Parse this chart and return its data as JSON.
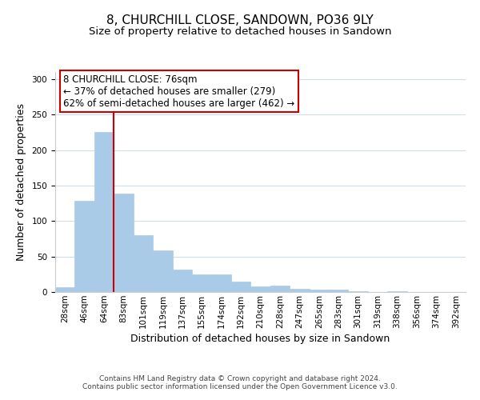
{
  "title": "8, CHURCHILL CLOSE, SANDOWN, PO36 9LY",
  "subtitle": "Size of property relative to detached houses in Sandown",
  "xlabel": "Distribution of detached houses by size in Sandown",
  "ylabel": "Number of detached properties",
  "bar_labels": [
    "28sqm",
    "46sqm",
    "64sqm",
    "83sqm",
    "101sqm",
    "119sqm",
    "137sqm",
    "155sqm",
    "174sqm",
    "192sqm",
    "210sqm",
    "228sqm",
    "247sqm",
    "265sqm",
    "283sqm",
    "301sqm",
    "319sqm",
    "338sqm",
    "356sqm",
    "374sqm",
    "392sqm"
  ],
  "bar_values": [
    7,
    128,
    226,
    139,
    80,
    59,
    32,
    25,
    25,
    15,
    8,
    9,
    5,
    3,
    3,
    1,
    0,
    1,
    0,
    0,
    0
  ],
  "bar_color": "#aacbe8",
  "bar_edge_color": "#aacbe8",
  "ylim": [
    0,
    310
  ],
  "yticks": [
    0,
    50,
    100,
    150,
    200,
    250,
    300
  ],
  "property_line_bin_index": 2.5,
  "annotation_text": "8 CHURCHILL CLOSE: 76sqm\n← 37% of detached houses are smaller (279)\n62% of semi-detached houses are larger (462) →",
  "annotation_box_color": "#ffffff",
  "annotation_box_edge_color": "#cc0000",
  "red_line_color": "#cc0000",
  "footer_line1": "Contains HM Land Registry data © Crown copyright and database right 2024.",
  "footer_line2": "Contains public sector information licensed under the Open Government Licence v3.0.",
  "background_color": "#ffffff",
  "grid_color": "#d0dde8",
  "title_fontsize": 11,
  "subtitle_fontsize": 9.5,
  "axis_label_fontsize": 9,
  "tick_fontsize": 7.5,
  "footer_fontsize": 6.5,
  "annotation_fontsize": 8.5
}
